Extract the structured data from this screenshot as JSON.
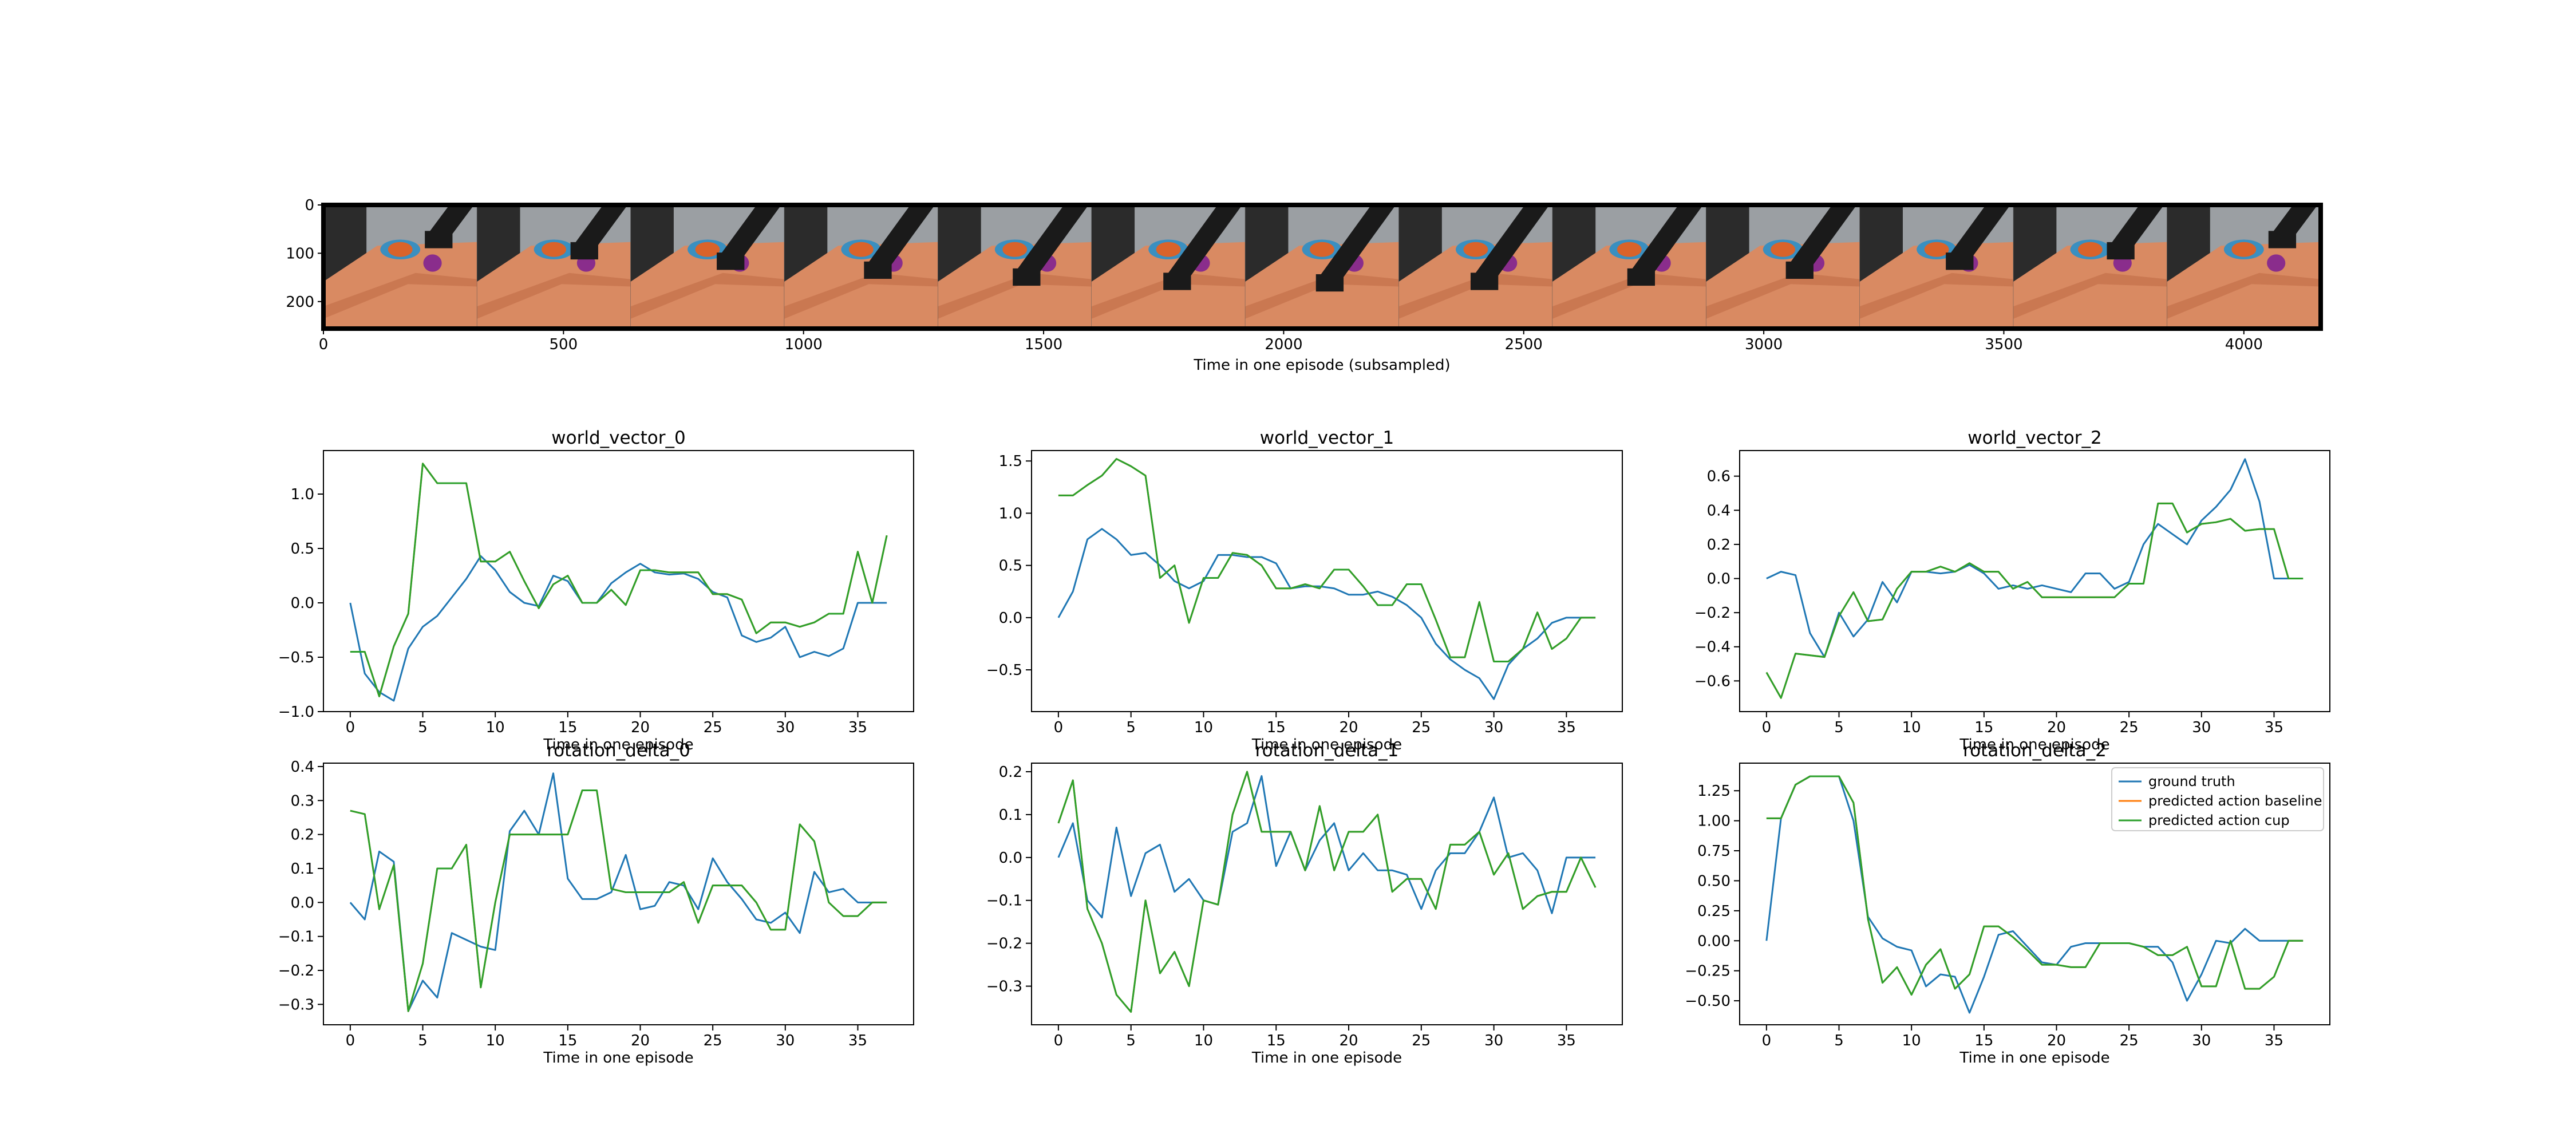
{
  "colors": {
    "ground_truth": "#1f77b4",
    "baseline": "#ff7f0e",
    "cup": "#2ca02c",
    "axis": "#000000"
  },
  "filmstrip": {
    "xlabel": "Time in one episode (subsampled)",
    "x_ticks": [
      0,
      500,
      1000,
      1500,
      2000,
      2500,
      3000,
      3500,
      4000
    ],
    "y_ticks": [
      0,
      100,
      200
    ],
    "xlim": [
      0,
      4160
    ],
    "ylim": [
      256,
      0
    ],
    "frame_count": 13,
    "scene_colors": {
      "table": "#d98a62",
      "table_dark": "#b8623f",
      "wall": "#9b9fa3",
      "shadow": "#2b2b2b",
      "robot": "#1a1a1a",
      "tray": "#3a8fc0",
      "bowl": "#d9632a",
      "purple": "#8a2d8c"
    }
  },
  "legend": {
    "entries": [
      "ground truth",
      "predicted action baseline",
      "predicted action cup"
    ]
  },
  "chart_data": [
    {
      "type": "line",
      "title": "world_vector_0",
      "xlabel": "Time in one episode",
      "ylabel": "",
      "xlim": [
        -1.85,
        38.85
      ],
      "ylim": [
        -1.0,
        1.4
      ],
      "x_ticks": [
        0,
        5,
        10,
        15,
        20,
        25,
        30,
        35
      ],
      "y_ticks": [
        -1.0,
        -0.5,
        0.0,
        0.5,
        1.0
      ],
      "y_tick_labels": [
        "−1.0",
        "−0.5",
        "0.0",
        "0.5",
        "1.0"
      ],
      "series": [
        {
          "name": "ground truth",
          "values": [
            0.0,
            -0.65,
            -0.82,
            -0.9,
            -0.42,
            -0.22,
            -0.12,
            0.05,
            0.22,
            0.43,
            0.3,
            0.1,
            0.0,
            -0.03,
            0.25,
            0.2,
            0.0,
            0.0,
            0.18,
            0.28,
            0.36,
            0.28,
            0.26,
            0.27,
            0.22,
            0.1,
            0.05,
            -0.3,
            -0.36,
            -0.32,
            -0.22,
            -0.5,
            -0.45,
            -0.49,
            -0.42,
            0.0,
            0.0,
            0.0
          ]
        },
        {
          "name": "predicted action baseline",
          "values": [
            -0.45,
            -0.45,
            -0.86,
            -0.4,
            -0.1,
            1.28,
            1.1,
            1.1,
            1.1,
            0.38,
            0.38,
            0.47,
            0.2,
            -0.05,
            0.17,
            0.25,
            0.0,
            0.0,
            0.12,
            -0.02,
            0.3,
            0.3,
            0.28,
            0.28,
            0.28,
            0.08,
            0.08,
            0.03,
            -0.28,
            -0.18,
            -0.18,
            -0.22,
            -0.18,
            -0.1,
            -0.1,
            0.47,
            0.0,
            0.62
          ]
        },
        {
          "name": "predicted action cup",
          "values": [
            -0.45,
            -0.45,
            -0.86,
            -0.4,
            -0.1,
            1.28,
            1.1,
            1.1,
            1.1,
            0.38,
            0.38,
            0.47,
            0.2,
            -0.05,
            0.17,
            0.25,
            0.0,
            0.0,
            0.12,
            -0.02,
            0.3,
            0.3,
            0.28,
            0.28,
            0.28,
            0.08,
            0.08,
            0.03,
            -0.28,
            -0.18,
            -0.18,
            -0.22,
            -0.18,
            -0.1,
            -0.1,
            0.47,
            0.0,
            0.62
          ]
        }
      ]
    },
    {
      "type": "line",
      "title": "world_vector_1",
      "xlabel": "Time in one episode",
      "ylabel": "",
      "xlim": [
        -1.85,
        38.85
      ],
      "ylim": [
        -0.9,
        1.6
      ],
      "x_ticks": [
        0,
        5,
        10,
        15,
        20,
        25,
        30,
        35
      ],
      "y_ticks": [
        -0.5,
        0.0,
        0.5,
        1.0,
        1.5
      ],
      "y_tick_labels": [
        "−0.5",
        "0.0",
        "0.5",
        "1.0",
        "1.5"
      ],
      "series": [
        {
          "name": "ground truth",
          "values": [
            0.0,
            0.25,
            0.75,
            0.85,
            0.75,
            0.6,
            0.62,
            0.5,
            0.35,
            0.28,
            0.35,
            0.6,
            0.6,
            0.58,
            0.58,
            0.52,
            0.28,
            0.3,
            0.3,
            0.28,
            0.22,
            0.22,
            0.25,
            0.2,
            0.12,
            0.0,
            -0.25,
            -0.4,
            -0.5,
            -0.58,
            -0.78,
            -0.45,
            -0.3,
            -0.2,
            -0.05,
            0.0,
            0.0,
            0.0
          ]
        },
        {
          "name": "predicted action baseline",
          "values": [
            1.17,
            1.17,
            1.27,
            1.36,
            1.52,
            1.45,
            1.36,
            0.38,
            0.5,
            -0.05,
            0.38,
            0.38,
            0.62,
            0.6,
            0.5,
            0.28,
            0.28,
            0.32,
            0.28,
            0.46,
            0.46,
            0.3,
            0.12,
            0.12,
            0.32,
            0.32,
            -0.02,
            -0.38,
            -0.38,
            0.15,
            -0.42,
            -0.42,
            -0.3,
            0.05,
            -0.3,
            -0.2,
            0.0,
            0.0
          ]
        },
        {
          "name": "predicted action cup",
          "values": [
            1.17,
            1.17,
            1.27,
            1.36,
            1.52,
            1.45,
            1.36,
            0.38,
            0.5,
            -0.05,
            0.38,
            0.38,
            0.62,
            0.6,
            0.5,
            0.28,
            0.28,
            0.32,
            0.28,
            0.46,
            0.46,
            0.3,
            0.12,
            0.12,
            0.32,
            0.32,
            -0.02,
            -0.38,
            -0.38,
            0.15,
            -0.42,
            -0.42,
            -0.3,
            0.05,
            -0.3,
            -0.2,
            0.0,
            0.0
          ]
        }
      ]
    },
    {
      "type": "line",
      "title": "world_vector_2",
      "xlabel": "Time in one episode",
      "ylabel": "",
      "xlim": [
        -1.85,
        38.85
      ],
      "ylim": [
        -0.78,
        0.75
      ],
      "x_ticks": [
        0,
        5,
        10,
        15,
        20,
        25,
        30,
        35
      ],
      "y_ticks": [
        -0.6,
        -0.4,
        -0.2,
        0.0,
        0.2,
        0.4,
        0.6
      ],
      "y_tick_labels": [
        "−0.6",
        "−0.4",
        "−0.2",
        "0.0",
        "0.2",
        "0.4",
        "0.6"
      ],
      "series": [
        {
          "name": "ground truth",
          "values": [
            0.0,
            0.04,
            0.02,
            -0.32,
            -0.46,
            -0.2,
            -0.34,
            -0.24,
            -0.02,
            -0.14,
            0.04,
            0.04,
            0.03,
            0.04,
            0.08,
            0.03,
            -0.06,
            -0.04,
            -0.06,
            -0.04,
            -0.06,
            -0.08,
            0.03,
            0.03,
            -0.06,
            -0.02,
            0.2,
            0.32,
            0.26,
            0.2,
            0.34,
            0.42,
            0.52,
            0.7,
            0.45,
            0.0,
            0.0,
            0.0
          ]
        },
        {
          "name": "predicted action baseline",
          "values": [
            -0.55,
            -0.7,
            -0.44,
            -0.45,
            -0.46,
            -0.22,
            -0.08,
            -0.25,
            -0.24,
            -0.06,
            0.04,
            0.04,
            0.07,
            0.04,
            0.09,
            0.04,
            0.04,
            -0.06,
            -0.02,
            -0.11,
            -0.11,
            -0.11,
            -0.11,
            -0.11,
            -0.11,
            -0.03,
            -0.03,
            0.44,
            0.44,
            0.27,
            0.32,
            0.33,
            0.35,
            0.28,
            0.29,
            0.29,
            0.0,
            0.0
          ]
        },
        {
          "name": "predicted action cup",
          "values": [
            -0.55,
            -0.7,
            -0.44,
            -0.45,
            -0.46,
            -0.22,
            -0.08,
            -0.25,
            -0.24,
            -0.06,
            0.04,
            0.04,
            0.07,
            0.04,
            0.09,
            0.04,
            0.04,
            -0.06,
            -0.02,
            -0.11,
            -0.11,
            -0.11,
            -0.11,
            -0.11,
            -0.11,
            -0.03,
            -0.03,
            0.44,
            0.44,
            0.27,
            0.32,
            0.33,
            0.35,
            0.28,
            0.29,
            0.29,
            0.0,
            0.0
          ]
        }
      ]
    },
    {
      "type": "line",
      "title": "rotation_delta_0",
      "xlabel": "Time in one episode",
      "ylabel": "",
      "xlim": [
        -1.85,
        38.85
      ],
      "ylim": [
        -0.36,
        0.41
      ],
      "x_ticks": [
        0,
        5,
        10,
        15,
        20,
        25,
        30,
        35
      ],
      "y_ticks": [
        -0.3,
        -0.2,
        -0.1,
        0.0,
        0.1,
        0.2,
        0.3,
        0.4
      ],
      "y_tick_labels": [
        "−0.3",
        "−0.2",
        "−0.1",
        "0.0",
        "0.1",
        "0.2",
        "0.3",
        "0.4"
      ],
      "series": [
        {
          "name": "ground truth",
          "values": [
            0.0,
            -0.05,
            0.15,
            0.12,
            -0.32,
            -0.23,
            -0.28,
            -0.09,
            -0.11,
            -0.13,
            -0.14,
            0.21,
            0.27,
            0.2,
            0.38,
            0.07,
            0.01,
            0.01,
            0.03,
            0.14,
            -0.02,
            -0.01,
            0.06,
            0.05,
            -0.02,
            0.13,
            0.06,
            0.01,
            -0.05,
            -0.06,
            -0.03,
            -0.09,
            0.09,
            0.03,
            0.04,
            0.0,
            0.0,
            0.0
          ]
        },
        {
          "name": "predicted action baseline",
          "values": [
            0.27,
            0.26,
            -0.02,
            0.11,
            -0.32,
            -0.18,
            0.1,
            0.1,
            0.17,
            -0.25,
            0.0,
            0.2,
            0.2,
            0.2,
            0.2,
            0.2,
            0.33,
            0.33,
            0.04,
            0.03,
            0.03,
            0.03,
            0.03,
            0.06,
            -0.06,
            0.05,
            0.05,
            0.05,
            0.0,
            -0.08,
            -0.08,
            0.23,
            0.18,
            0.0,
            -0.04,
            -0.04,
            0.0,
            0.0
          ]
        },
        {
          "name": "predicted action cup",
          "values": [
            0.27,
            0.26,
            -0.02,
            0.11,
            -0.32,
            -0.18,
            0.1,
            0.1,
            0.17,
            -0.25,
            0.0,
            0.2,
            0.2,
            0.2,
            0.2,
            0.2,
            0.33,
            0.33,
            0.04,
            0.03,
            0.03,
            0.03,
            0.03,
            0.06,
            -0.06,
            0.05,
            0.05,
            0.05,
            0.0,
            -0.08,
            -0.08,
            0.23,
            0.18,
            0.0,
            -0.04,
            -0.04,
            0.0,
            0.0
          ]
        }
      ]
    },
    {
      "type": "line",
      "title": "rotation_delta_1",
      "xlabel": "Time in one episode",
      "ylabel": "",
      "xlim": [
        -1.85,
        38.85
      ],
      "ylim": [
        -0.39,
        0.22
      ],
      "x_ticks": [
        0,
        5,
        10,
        15,
        20,
        25,
        30,
        35
      ],
      "y_ticks": [
        -0.3,
        -0.2,
        -0.1,
        0.0,
        0.1,
        0.2
      ],
      "y_tick_labels": [
        "−0.3",
        "−0.2",
        "−0.1",
        "0.0",
        "0.1",
        "0.2"
      ],
      "series": [
        {
          "name": "ground truth",
          "values": [
            0.0,
            0.08,
            -0.1,
            -0.14,
            0.07,
            -0.09,
            0.01,
            0.03,
            -0.08,
            -0.05,
            -0.1,
            -0.11,
            0.06,
            0.08,
            0.19,
            -0.02,
            0.06,
            -0.03,
            0.04,
            0.08,
            -0.03,
            0.01,
            -0.03,
            -0.03,
            -0.04,
            -0.12,
            -0.03,
            0.01,
            0.01,
            0.06,
            0.14,
            0.0,
            0.01,
            -0.03,
            -0.13,
            0.0,
            0.0,
            0.0
          ]
        },
        {
          "name": "predicted action baseline",
          "values": [
            0.08,
            0.18,
            -0.12,
            -0.2,
            -0.32,
            -0.36,
            -0.1,
            -0.27,
            -0.22,
            -0.3,
            -0.1,
            -0.11,
            0.1,
            0.2,
            0.06,
            0.06,
            0.06,
            -0.03,
            0.12,
            -0.03,
            0.06,
            0.06,
            0.1,
            -0.08,
            -0.05,
            -0.05,
            -0.12,
            0.03,
            0.03,
            0.06,
            -0.04,
            0.01,
            -0.12,
            -0.09,
            -0.08,
            -0.08,
            0.0,
            -0.07
          ]
        },
        {
          "name": "predicted action cup",
          "values": [
            0.08,
            0.18,
            -0.12,
            -0.2,
            -0.32,
            -0.36,
            -0.1,
            -0.27,
            -0.22,
            -0.3,
            -0.1,
            -0.11,
            0.1,
            0.2,
            0.06,
            0.06,
            0.06,
            -0.03,
            0.12,
            -0.03,
            0.06,
            0.06,
            0.1,
            -0.08,
            -0.05,
            -0.05,
            -0.12,
            0.03,
            0.03,
            0.06,
            -0.04,
            0.01,
            -0.12,
            -0.09,
            -0.08,
            -0.08,
            0.0,
            -0.07
          ]
        }
      ]
    },
    {
      "type": "line",
      "title": "rotation_delta_2",
      "xlabel": "Time in one episode",
      "ylabel": "",
      "xlim": [
        -1.85,
        38.85
      ],
      "ylim": [
        -0.7,
        1.48
      ],
      "x_ticks": [
        0,
        5,
        10,
        15,
        20,
        25,
        30,
        35
      ],
      "y_ticks": [
        -0.5,
        -0.25,
        0.0,
        0.25,
        0.5,
        0.75,
        1.0,
        1.25
      ],
      "y_tick_labels": [
        "−0.50",
        "−0.25",
        "0.00",
        "0.25",
        "0.50",
        "0.75",
        "1.00",
        "1.25"
      ],
      "series": [
        {
          "name": "ground truth",
          "values": [
            0.0,
            1.02,
            1.3,
            1.37,
            1.37,
            1.37,
            1.0,
            0.2,
            0.02,
            -0.05,
            -0.08,
            -0.38,
            -0.28,
            -0.3,
            -0.6,
            -0.3,
            0.05,
            0.08,
            -0.05,
            -0.18,
            -0.2,
            -0.05,
            -0.02,
            -0.02,
            -0.02,
            -0.02,
            -0.05,
            -0.05,
            -0.18,
            -0.5,
            -0.28,
            0.0,
            -0.02,
            0.1,
            0.0,
            0.0,
            0.0,
            0.0
          ]
        },
        {
          "name": "predicted action baseline",
          "values": [
            1.02,
            1.02,
            1.3,
            1.37,
            1.37,
            1.37,
            1.15,
            0.18,
            -0.35,
            -0.22,
            -0.45,
            -0.2,
            -0.07,
            -0.4,
            -0.28,
            0.12,
            0.12,
            0.03,
            -0.08,
            -0.2,
            -0.2,
            -0.22,
            -0.22,
            -0.02,
            -0.02,
            -0.02,
            -0.05,
            -0.12,
            -0.12,
            -0.05,
            -0.38,
            -0.38,
            0.0,
            -0.4,
            -0.4,
            -0.3,
            0.0,
            0.0
          ]
        },
        {
          "name": "predicted action cup",
          "values": [
            1.02,
            1.02,
            1.3,
            1.37,
            1.37,
            1.37,
            1.15,
            0.18,
            -0.35,
            -0.22,
            -0.45,
            -0.2,
            -0.07,
            -0.4,
            -0.28,
            0.12,
            0.12,
            0.03,
            -0.08,
            -0.2,
            -0.2,
            -0.22,
            -0.22,
            -0.02,
            -0.02,
            -0.02,
            -0.05,
            -0.12,
            -0.12,
            -0.05,
            -0.38,
            -0.38,
            0.0,
            -0.4,
            -0.4,
            -0.3,
            0.0,
            0.0
          ]
        }
      ]
    }
  ]
}
